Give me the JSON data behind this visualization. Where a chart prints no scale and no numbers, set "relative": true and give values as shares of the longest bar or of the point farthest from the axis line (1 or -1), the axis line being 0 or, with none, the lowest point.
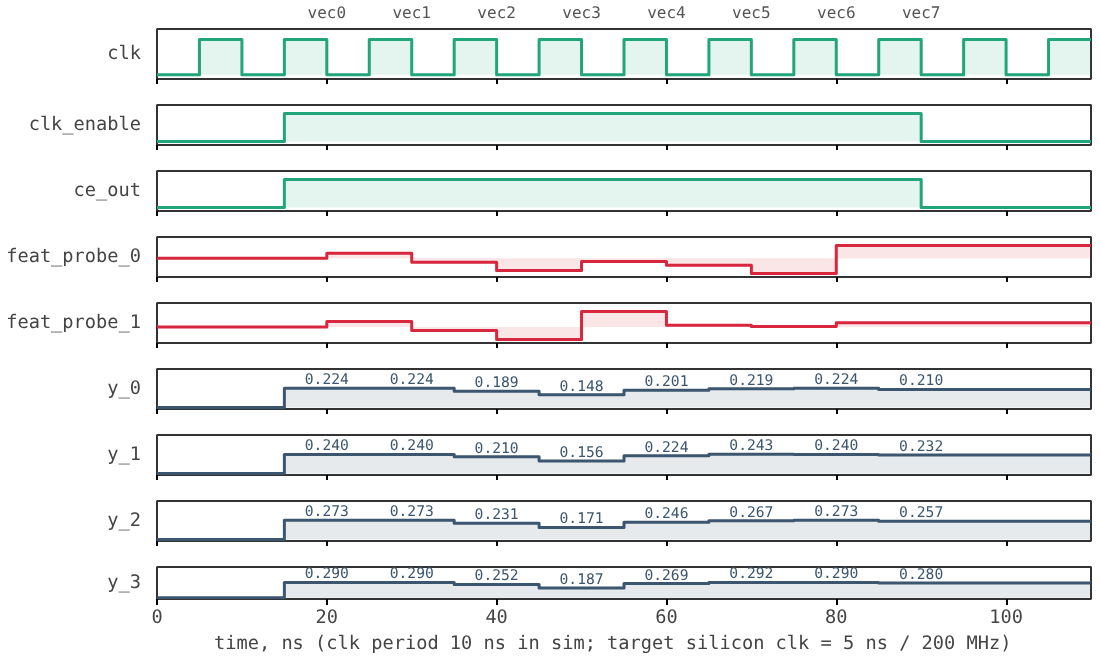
{
  "chart_data": [
    {
      "type": "step",
      "ylabel": "clk",
      "relative": true,
      "xlim": [
        0,
        110
      ],
      "xticks": [
        0,
        20,
        40,
        60,
        80,
        100
      ],
      "tick_labels": false,
      "x": [
        0,
        5,
        10,
        15,
        20,
        25,
        30,
        35,
        40,
        45,
        50,
        55,
        60,
        65,
        70,
        75,
        80,
        85,
        90,
        95,
        100,
        105,
        110
      ],
      "series": [
        {
          "color": "#22a57b",
          "values": [
            0,
            1,
            0,
            1,
            0,
            1,
            0,
            1,
            0,
            1,
            0,
            1,
            0,
            1,
            0,
            1,
            0,
            1,
            0,
            1,
            0,
            1,
            1
          ]
        }
      ],
      "annotations": [
        "vec0",
        "vec1",
        "vec2",
        "vec3",
        "vec4",
        "vec5",
        "vec6",
        "vec7"
      ]
    },
    {
      "type": "step",
      "ylabel": "clk_enable",
      "relative": true,
      "xlim": [
        0,
        110
      ],
      "xticks": [
        0,
        20,
        40,
        60,
        80,
        100
      ],
      "tick_labels": false,
      "x": [
        0,
        15,
        90,
        110
      ],
      "series": [
        {
          "color": "#22a57b",
          "values": [
            0,
            1,
            0,
            0
          ]
        }
      ]
    },
    {
      "type": "step",
      "ylabel": "ce_out",
      "relative": true,
      "xlim": [
        0,
        110
      ],
      "xticks": [
        0,
        20,
        40,
        60,
        80,
        100
      ],
      "tick_labels": false,
      "x": [
        0,
        15,
        90,
        110
      ],
      "series": [
        {
          "color": "#22a57b",
          "values": [
            0,
            1,
            0,
            0
          ]
        }
      ]
    },
    {
      "type": "step",
      "ylabel": "feat_probe_0",
      "relative": true,
      "xlim": [
        0,
        110
      ],
      "xticks": [
        0,
        20,
        40,
        60,
        80,
        100
      ],
      "tick_labels": false,
      "x": [
        0,
        20,
        30,
        40,
        50,
        60,
        70,
        80,
        110
      ],
      "series": [
        {
          "color": "#d7263d",
          "values": [
            0.55,
            0.72,
            0.4,
            0.11,
            0.43,
            0.3,
            0,
            1,
            1
          ]
        }
      ]
    },
    {
      "type": "step",
      "ylabel": "feat_probe_1",
      "relative": true,
      "xlim": [
        0,
        110
      ],
      "xticks": [
        0,
        20,
        40,
        60,
        80,
        100
      ],
      "tick_labels": false,
      "x": [
        0,
        20,
        30,
        40,
        50,
        60,
        70,
        80,
        110
      ],
      "series": [
        {
          "color": "#d7263d",
          "values": [
            0.45,
            0.64,
            0.32,
            0,
            1,
            0.51,
            0.47,
            0.6,
            0.6
          ]
        }
      ]
    },
    {
      "type": "step",
      "ylabel": "y_0",
      "xlim": [
        0,
        110
      ],
      "xticks": [
        0,
        20,
        40,
        60,
        80,
        100
      ],
      "tick_labels": false,
      "x": [
        0,
        15,
        25,
        35,
        45,
        55,
        65,
        75,
        85,
        95,
        110
      ],
      "series": [
        {
          "color": "#3b566e",
          "values": [
            0,
            0.224,
            0.224,
            0.189,
            0.148,
            0.201,
            0.219,
            0.224,
            0.21,
            0.21,
            0.21
          ],
          "value_labels": [
            null,
            "0.224",
            "0.224",
            "0.189",
            "0.148",
            "0.201",
            "0.219",
            "0.224",
            "0.210",
            null,
            null
          ]
        }
      ]
    },
    {
      "type": "step",
      "ylabel": "y_1",
      "xlim": [
        0,
        110
      ],
      "xticks": [
        0,
        20,
        40,
        60,
        80,
        100
      ],
      "tick_labels": false,
      "x": [
        0,
        15,
        25,
        35,
        45,
        55,
        65,
        75,
        85,
        95,
        110
      ],
      "series": [
        {
          "color": "#3b566e",
          "values": [
            0,
            0.24,
            0.24,
            0.21,
            0.156,
            0.224,
            0.243,
            0.24,
            0.232,
            0.232,
            0.232
          ],
          "value_labels": [
            null,
            "0.240",
            "0.240",
            "0.210",
            "0.156",
            "0.224",
            "0.243",
            "0.240",
            "0.232",
            null,
            null
          ]
        }
      ]
    },
    {
      "type": "step",
      "ylabel": "y_2",
      "xlim": [
        0,
        110
      ],
      "xticks": [
        0,
        20,
        40,
        60,
        80,
        100
      ],
      "tick_labels": false,
      "x": [
        0,
        15,
        25,
        35,
        45,
        55,
        65,
        75,
        85,
        95,
        110
      ],
      "series": [
        {
          "color": "#3b566e",
          "values": [
            0,
            0.273,
            0.273,
            0.231,
            0.171,
            0.246,
            0.267,
            0.273,
            0.257,
            0.257,
            0.257
          ],
          "value_labels": [
            null,
            "0.273",
            "0.273",
            "0.231",
            "0.171",
            "0.246",
            "0.267",
            "0.273",
            "0.257",
            null,
            null
          ]
        }
      ]
    },
    {
      "type": "step",
      "ylabel": "y_3",
      "xlabel": "time, ns   (clk period 10 ns in sim; target silicon clk = 5 ns / 200 MHz)",
      "xlim": [
        0,
        110
      ],
      "xticks": [
        0,
        20,
        40,
        60,
        80,
        100
      ],
      "tick_labels": "x",
      "x": [
        0,
        15,
        25,
        35,
        45,
        55,
        65,
        75,
        85,
        95,
        110
      ],
      "series": [
        {
          "color": "#3b566e",
          "values": [
            0,
            0.29,
            0.29,
            0.252,
            0.187,
            0.269,
            0.292,
            0.29,
            0.28,
            0.28,
            0.28
          ],
          "value_labels": [
            null,
            "0.290",
            "0.290",
            "0.252",
            "0.187",
            "0.269",
            "0.292",
            "0.290",
            "0.280",
            null,
            null
          ]
        }
      ]
    }
  ]
}
